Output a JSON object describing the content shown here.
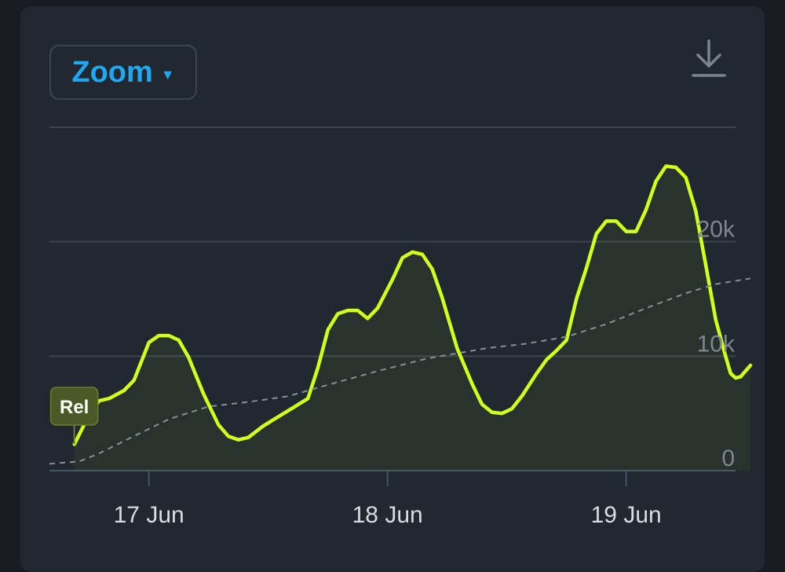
{
  "toolbar": {
    "zoom_label": "Zoom",
    "download_icon": "download-icon"
  },
  "colors": {
    "background": "#181c22",
    "card": "#212830",
    "accent": "#1ea7f2",
    "line": "#d4ff1a",
    "trend": "#8a8f93",
    "grid": "#3c4651",
    "marker_fill": "#4a5a26",
    "marker_text": "#ffffff"
  },
  "chart_data": {
    "type": "line",
    "ylim": [
      0,
      30000
    ],
    "yticks": [
      {
        "value": 0,
        "label": "0"
      },
      {
        "value": 10000,
        "label": "10k"
      },
      {
        "value": 20000,
        "label": "20k"
      }
    ],
    "xlim": [
      "2023-06-16T14:00",
      "2023-06-19T11:00"
    ],
    "xticks": [
      {
        "date": "2023-06-17T00:00",
        "label": "17 Jun"
      },
      {
        "date": "2023-06-18T00:00",
        "label": "18 Jun"
      },
      {
        "date": "2023-06-19T00:00",
        "label": "19 Jun"
      }
    ],
    "grid": true,
    "marker": {
      "label": "Rel",
      "date": "2023-06-16T16:30",
      "value": 2300
    },
    "series": [
      {
        "style": "solid",
        "points": [
          [
            "2023-06-16T16:30",
            2300
          ],
          [
            "2023-06-16T18:00",
            4900
          ],
          [
            "2023-06-16T19:00",
            6100
          ],
          [
            "2023-06-16T20:00",
            6300
          ],
          [
            "2023-06-16T21:30",
            7000
          ],
          [
            "2023-06-16T22:30",
            7900
          ],
          [
            "2023-06-17T00:00",
            11200
          ],
          [
            "2023-06-17T01:00",
            11800
          ],
          [
            "2023-06-17T02:00",
            11800
          ],
          [
            "2023-06-17T03:00",
            11400
          ],
          [
            "2023-06-17T04:00",
            9900
          ],
          [
            "2023-06-17T05:30",
            6700
          ],
          [
            "2023-06-17T07:00",
            4000
          ],
          [
            "2023-06-17T08:00",
            3000
          ],
          [
            "2023-06-17T09:00",
            2700
          ],
          [
            "2023-06-17T10:00",
            2900
          ],
          [
            "2023-06-17T11:30",
            3900
          ],
          [
            "2023-06-17T13:00",
            4700
          ],
          [
            "2023-06-17T14:30",
            5500
          ],
          [
            "2023-06-17T16:00",
            6300
          ],
          [
            "2023-06-17T17:00",
            9000
          ],
          [
            "2023-06-17T18:00",
            12300
          ],
          [
            "2023-06-17T19:00",
            13700
          ],
          [
            "2023-06-17T20:00",
            14000
          ],
          [
            "2023-06-17T21:00",
            14000
          ],
          [
            "2023-06-17T22:00",
            13300
          ],
          [
            "2023-06-17T23:00",
            14200
          ],
          [
            "2023-06-18T00:30",
            16700
          ],
          [
            "2023-06-18T01:30",
            18600
          ],
          [
            "2023-06-18T02:30",
            19100
          ],
          [
            "2023-06-18T03:30",
            18900
          ],
          [
            "2023-06-18T04:30",
            17600
          ],
          [
            "2023-06-18T05:30",
            15100
          ],
          [
            "2023-06-18T07:00",
            10700
          ],
          [
            "2023-06-18T08:30",
            7600
          ],
          [
            "2023-06-18T09:30",
            5800
          ],
          [
            "2023-06-18T10:30",
            5100
          ],
          [
            "2023-06-18T11:30",
            5000
          ],
          [
            "2023-06-18T12:30",
            5400
          ],
          [
            "2023-06-18T13:30",
            6500
          ],
          [
            "2023-06-18T15:00",
            8500
          ],
          [
            "2023-06-18T16:00",
            9700
          ],
          [
            "2023-06-18T17:00",
            10500
          ],
          [
            "2023-06-18T18:00",
            11400
          ],
          [
            "2023-06-18T19:00",
            15000
          ],
          [
            "2023-06-18T20:00",
            17700
          ],
          [
            "2023-06-18T21:00",
            20700
          ],
          [
            "2023-06-18T22:00",
            21800
          ],
          [
            "2023-06-18T23:00",
            21800
          ],
          [
            "2023-06-19T00:00",
            20900
          ],
          [
            "2023-06-19T01:00",
            20900
          ],
          [
            "2023-06-19T02:00",
            22800
          ],
          [
            "2023-06-19T03:00",
            25300
          ],
          [
            "2023-06-19T04:00",
            26600
          ],
          [
            "2023-06-19T05:00",
            26500
          ],
          [
            "2023-06-19T06:00",
            25600
          ],
          [
            "2023-06-19T07:00",
            22700
          ],
          [
            "2023-06-19T08:00",
            18000
          ],
          [
            "2023-06-19T09:00",
            13200
          ],
          [
            "2023-06-19T10:00",
            10000
          ],
          [
            "2023-06-19T10:30",
            8500
          ],
          [
            "2023-06-19T11:00",
            8100
          ],
          [
            "2023-06-19T11:30",
            8200
          ],
          [
            "2023-06-19T12:30",
            9200
          ]
        ]
      },
      {
        "style": "dashed",
        "points": [
          [
            "2023-06-16T14:00",
            600
          ],
          [
            "2023-06-16T17:00",
            800
          ],
          [
            "2023-06-16T19:00",
            1500
          ],
          [
            "2023-06-16T22:00",
            2800
          ],
          [
            "2023-06-17T02:00",
            4500
          ],
          [
            "2023-06-17T06:00",
            5600
          ],
          [
            "2023-06-17T10:00",
            6000
          ],
          [
            "2023-06-17T14:00",
            6500
          ],
          [
            "2023-06-17T18:00",
            7500
          ],
          [
            "2023-06-17T23:00",
            8700
          ],
          [
            "2023-06-18T04:00",
            9800
          ],
          [
            "2023-06-18T10:00",
            10700
          ],
          [
            "2023-06-18T14:00",
            11100
          ],
          [
            "2023-06-18T18:00",
            11700
          ],
          [
            "2023-06-18T22:00",
            12800
          ],
          [
            "2023-06-19T02:00",
            14200
          ],
          [
            "2023-06-19T06:00",
            15500
          ],
          [
            "2023-06-19T09:00",
            16300
          ],
          [
            "2023-06-19T12:30",
            16800
          ]
        ]
      }
    ]
  }
}
